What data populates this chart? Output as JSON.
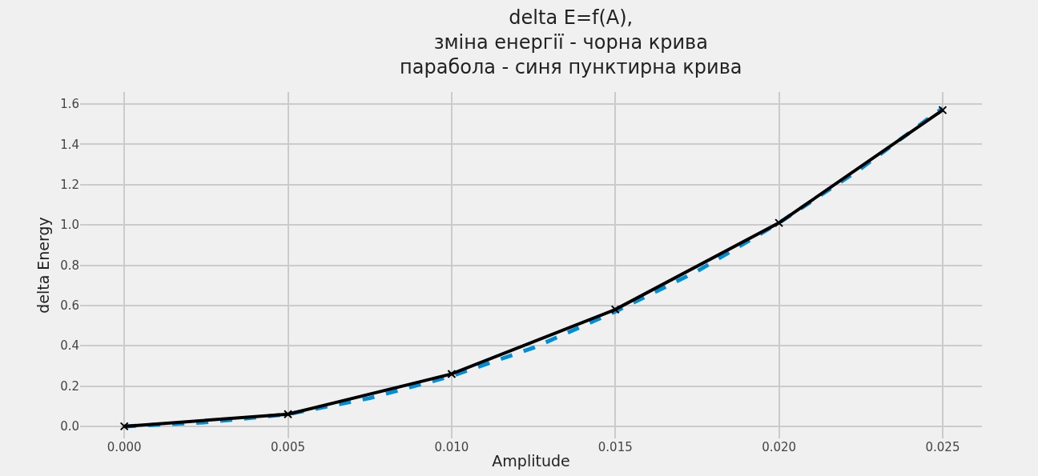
{
  "chart_data": {
    "type": "line",
    "title": "delta E=f(A),\nзміна енергії - чорна крива\nпарабола - синя пунктирна крива",
    "xlabel": "Amplitude",
    "ylabel": "delta Energy",
    "series": [
      {
        "color": "#008fd5",
        "line_style": "dashed",
        "marker": "none",
        "x": [
          0,
          0.0025,
          0.005,
          0.0075,
          0.01,
          0.0125,
          0.015,
          0.0175,
          0.02,
          0.0225,
          0.025
        ],
        "values": [
          0,
          0.02,
          0.06,
          0.14,
          0.25,
          0.39,
          0.57,
          0.77,
          1.01,
          1.28,
          1.58
        ]
      },
      {
        "color": "#000000",
        "line_style": "solid",
        "marker": "cross",
        "x": [
          0,
          0.005,
          0.01,
          0.015,
          0.02,
          0.025
        ],
        "values": [
          0,
          0.06,
          0.26,
          0.58,
          1.01,
          1.57
        ]
      }
    ],
    "xlim": [
      -0.00135,
      0.0262
    ],
    "xticks": [
      {
        "value": 0,
        "label": "0.000"
      },
      {
        "value": 0.005,
        "label": "0.005"
      },
      {
        "value": 0.01,
        "label": "0.010"
      },
      {
        "value": 0.015,
        "label": "0.015"
      },
      {
        "value": 0.02,
        "label": "0.020"
      },
      {
        "value": 0.025,
        "label": "0.025"
      }
    ],
    "ylim": [
      -0.06,
      1.66
    ],
    "yticks": [
      {
        "value": 0,
        "label": "0.0"
      },
      {
        "value": 0.2,
        "label": "0.2"
      },
      {
        "value": 0.4,
        "label": "0.4"
      },
      {
        "value": 0.6,
        "label": "0.6"
      },
      {
        "value": 0.8,
        "label": "0.8"
      },
      {
        "value": 1.0,
        "label": "1.0"
      },
      {
        "value": 1.2,
        "label": "1.2"
      },
      {
        "value": 1.4,
        "label": "1.4"
      },
      {
        "value": 1.6,
        "label": "1.6"
      }
    ],
    "grid": true
  }
}
